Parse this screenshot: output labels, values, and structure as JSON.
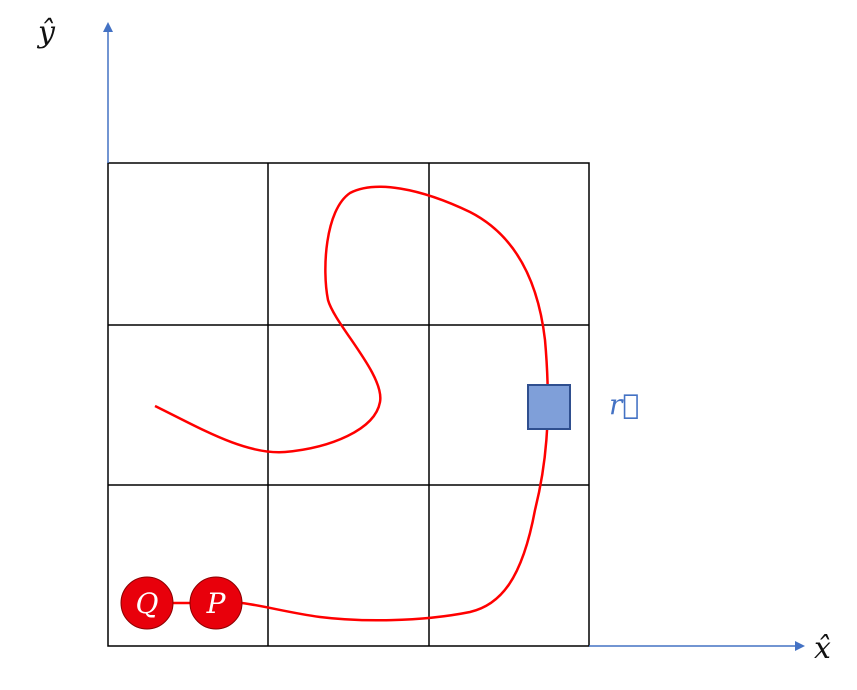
{
  "axes": {
    "x_label": "x̂",
    "y_label": "ŷ",
    "color": "#4472C4"
  },
  "grid": {
    "rows": 3,
    "cols": 3,
    "line_color": "#000000"
  },
  "path": {
    "color": "#FF0000"
  },
  "position_marker": {
    "label": "r⃗",
    "fill": "#7F9FD9",
    "stroke": "#2F4F8F",
    "label_color": "#4472C4"
  },
  "nodes": [
    {
      "label": "Q",
      "fill": "#E8000B"
    },
    {
      "label": "P",
      "fill": "#E8000B"
    }
  ]
}
